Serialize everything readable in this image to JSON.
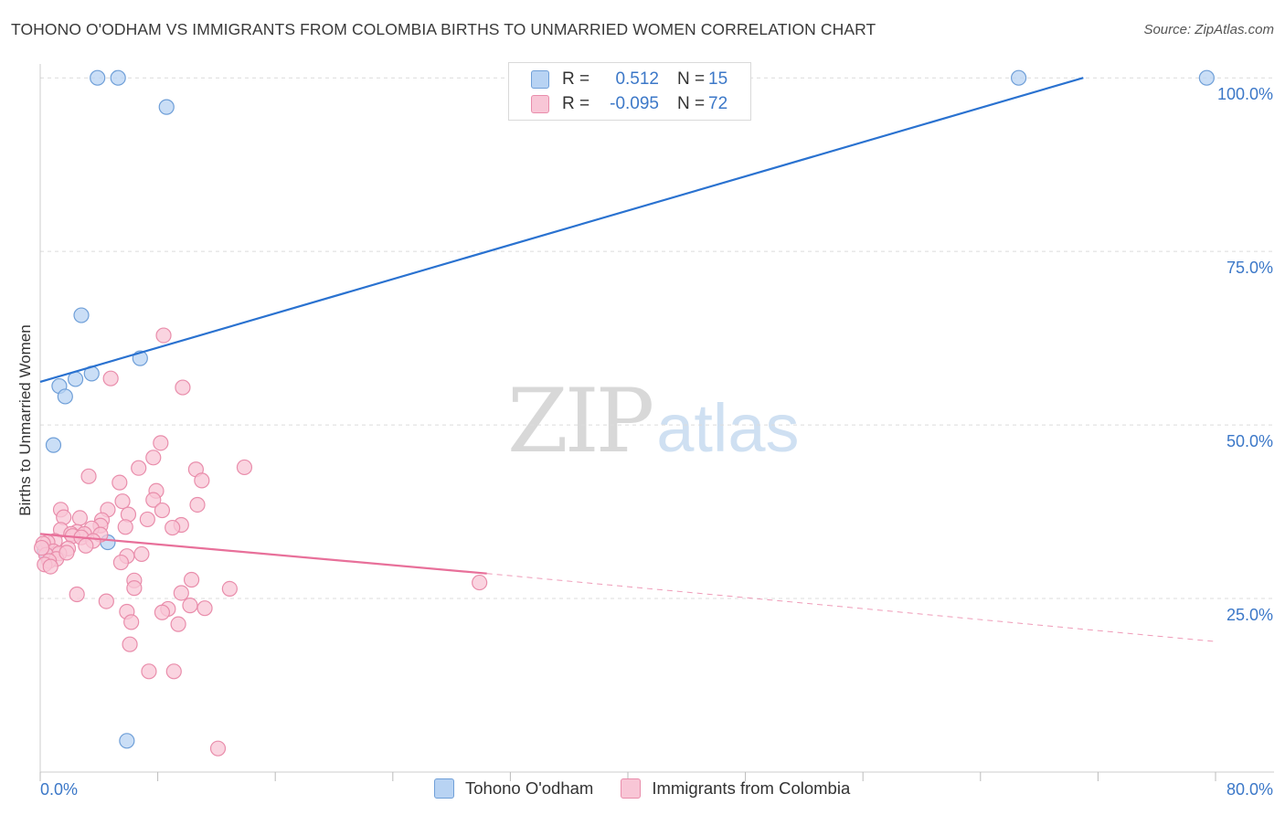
{
  "header": {
    "title": "TOHONO O'ODHAM VS IMMIGRANTS FROM COLOMBIA BIRTHS TO UNMARRIED WOMEN CORRELATION CHART",
    "source": "Source: ZipAtlas.com"
  },
  "watermark": {
    "zip": "ZIP",
    "atlas": "atlas"
  },
  "legend_top": {
    "rows": [
      {
        "r_label": "R =",
        "r_value": "0.512",
        "n_label": "N =",
        "n_value": "15"
      },
      {
        "r_label": "R =",
        "r_value": "-0.095",
        "n_label": "N =",
        "n_value": "72"
      }
    ]
  },
  "legend_bottom": {
    "items": [
      {
        "label": "Tohono O'odham"
      },
      {
        "label": "Immigrants from Colombia"
      }
    ]
  },
  "colors": {
    "blue_fill": "#b8d3f3",
    "blue_stroke": "#6f9fd8",
    "blue_line": "#2a72d0",
    "pink_fill": "#f8c6d6",
    "pink_stroke": "#e98dab",
    "pink_line": "#e8709a",
    "tick_text": "#3c78c8"
  },
  "chart_data": {
    "type": "scatter",
    "title": "TOHONO O'ODHAM VS IMMIGRANTS FROM COLOMBIA BIRTHS TO UNMARRIED WOMEN CORRELATION CHART",
    "xlabel": "",
    "ylabel": "Births to Unmarried Women",
    "xlim": [
      0,
      80
    ],
    "ylim": [
      0,
      102
    ],
    "x_tick_labels": [
      "0.0%",
      "80.0%"
    ],
    "y_ticks": [
      25,
      50,
      75,
      100
    ],
    "y_tick_labels": [
      "25.0%",
      "50.0%",
      "75.0%",
      "100.0%"
    ],
    "grid": true,
    "legend_position": "top-center",
    "series": [
      {
        "name": "Tohono O'odham",
        "color": "#b8d3f3",
        "points": [
          [
            3.9,
            100.0
          ],
          [
            5.3,
            100.0
          ],
          [
            8.6,
            95.8
          ],
          [
            66.6,
            100.0
          ],
          [
            79.4,
            100.0
          ],
          [
            2.8,
            65.8
          ],
          [
            6.8,
            59.6
          ],
          [
            3.5,
            57.4
          ],
          [
            2.4,
            56.6
          ],
          [
            1.3,
            55.6
          ],
          [
            1.7,
            54.1
          ],
          [
            0.9,
            47.1
          ],
          [
            4.6,
            33.1
          ],
          [
            0.3,
            31.9
          ],
          [
            5.9,
            4.5
          ]
        ],
        "trend": {
          "x": [
            0,
            71.0
          ],
          "y": [
            56.2,
            100.0
          ],
          "style": "solid"
        }
      },
      {
        "name": "Immigrants from Colombia",
        "color": "#f8c6d6",
        "points": [
          [
            8.4,
            62.9
          ],
          [
            4.8,
            56.7
          ],
          [
            9.7,
            55.4
          ],
          [
            8.2,
            47.4
          ],
          [
            7.7,
            45.3
          ],
          [
            13.9,
            43.9
          ],
          [
            6.7,
            43.8
          ],
          [
            10.6,
            43.6
          ],
          [
            3.3,
            42.6
          ],
          [
            5.4,
            41.7
          ],
          [
            11.0,
            42.0
          ],
          [
            7.9,
            40.5
          ],
          [
            7.7,
            39.2
          ],
          [
            5.6,
            39.0
          ],
          [
            10.7,
            38.5
          ],
          [
            1.4,
            37.8
          ],
          [
            4.6,
            37.8
          ],
          [
            6.0,
            37.1
          ],
          [
            8.3,
            37.7
          ],
          [
            1.6,
            36.7
          ],
          [
            4.2,
            36.3
          ],
          [
            2.7,
            36.6
          ],
          [
            7.3,
            36.4
          ],
          [
            4.1,
            35.5
          ],
          [
            5.8,
            35.3
          ],
          [
            9.6,
            35.6
          ],
          [
            9.0,
            35.2
          ],
          [
            3.5,
            35.1
          ],
          [
            1.4,
            34.9
          ],
          [
            2.5,
            34.6
          ],
          [
            2.1,
            34.3
          ],
          [
            3.0,
            34.3
          ],
          [
            2.2,
            34.0
          ],
          [
            4.1,
            34.2
          ],
          [
            2.8,
            33.8
          ],
          [
            3.6,
            33.3
          ],
          [
            1.0,
            33.3
          ],
          [
            0.5,
            33.1
          ],
          [
            0.2,
            32.9
          ],
          [
            3.1,
            32.6
          ],
          [
            1.9,
            32.2
          ],
          [
            0.9,
            31.8
          ],
          [
            5.9,
            31.1
          ],
          [
            1.3,
            31.5
          ],
          [
            6.9,
            31.4
          ],
          [
            0.4,
            31.3
          ],
          [
            1.1,
            30.7
          ],
          [
            0.6,
            30.4
          ],
          [
            0.3,
            29.9
          ],
          [
            0.7,
            29.6
          ],
          [
            5.5,
            30.2
          ],
          [
            6.4,
            27.6
          ],
          [
            10.3,
            27.7
          ],
          [
            12.9,
            26.4
          ],
          [
            29.9,
            27.3
          ],
          [
            6.4,
            26.5
          ],
          [
            2.5,
            25.6
          ],
          [
            9.6,
            25.8
          ],
          [
            4.5,
            24.6
          ],
          [
            8.7,
            23.5
          ],
          [
            10.2,
            24.0
          ],
          [
            11.2,
            23.6
          ],
          [
            8.3,
            23.0
          ],
          [
            5.9,
            23.1
          ],
          [
            6.2,
            21.6
          ],
          [
            9.4,
            21.3
          ],
          [
            6.1,
            18.4
          ],
          [
            7.4,
            14.5
          ],
          [
            9.1,
            14.5
          ],
          [
            12.1,
            3.4
          ],
          [
            0.1,
            32.3
          ],
          [
            1.8,
            31.6
          ]
        ],
        "trend": {
          "x": [
            0,
            30.4
          ],
          "y": [
            34.3,
            28.6
          ],
          "style": "solid",
          "dashed_extension": {
            "x": [
              30.4,
              80.0
            ],
            "y": [
              28.6,
              18.8
            ]
          }
        }
      }
    ]
  }
}
